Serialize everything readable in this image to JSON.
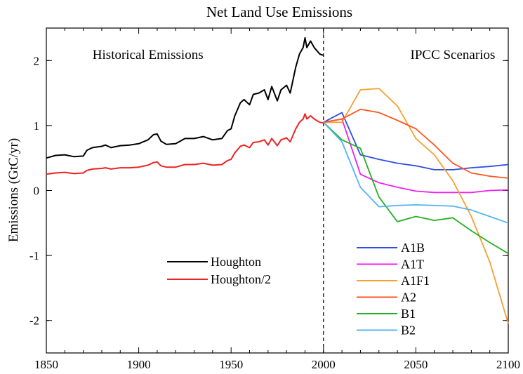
{
  "chart_data": {
    "type": "line",
    "title": "Net Land Use Emissions",
    "xlabel": "",
    "ylabel": "Emissions (GtC/yr)",
    "xlim": [
      1850,
      2100
    ],
    "ylim": [
      -2.5,
      2.5
    ],
    "xticks": [
      1850,
      1900,
      1950,
      2000,
      2050,
      2100
    ],
    "yticks": [
      -2,
      -1,
      0,
      1,
      2
    ],
    "grid": false,
    "annotations": [
      {
        "text": "Historical Emissions",
        "x": 1875
      },
      {
        "text": "IPCC Scenarios",
        "x": 2047
      }
    ],
    "divider": {
      "x": 2000,
      "style": "dashed"
    },
    "series": [
      {
        "name": "Houghton",
        "color": "#000000",
        "legend_group": "historical",
        "x": [
          1850,
          1855,
          1860,
          1865,
          1870,
          1872,
          1875,
          1880,
          1882,
          1885,
          1890,
          1895,
          1900,
          1905,
          1908,
          1910,
          1912,
          1915,
          1920,
          1925,
          1930,
          1935,
          1940,
          1945,
          1948,
          1950,
          1952,
          1955,
          1957,
          1960,
          1962,
          1965,
          1968,
          1970,
          1972,
          1975,
          1977,
          1980,
          1982,
          1985,
          1987,
          1989,
          1990,
          1991,
          1993,
          1995,
          1998,
          2000
        ],
        "y": [
          0.5,
          0.54,
          0.55,
          0.52,
          0.53,
          0.62,
          0.66,
          0.68,
          0.7,
          0.66,
          0.69,
          0.7,
          0.72,
          0.78,
          0.86,
          0.87,
          0.76,
          0.71,
          0.72,
          0.8,
          0.8,
          0.83,
          0.78,
          0.8,
          0.92,
          0.95,
          1.15,
          1.35,
          1.4,
          1.32,
          1.48,
          1.5,
          1.55,
          1.4,
          1.6,
          1.38,
          1.55,
          1.62,
          1.5,
          1.9,
          2.1,
          2.2,
          2.35,
          2.2,
          2.3,
          2.2,
          2.1,
          2.08
        ]
      },
      {
        "name": "Houghton/2",
        "color": "#ee2222",
        "legend_group": "historical",
        "x": [
          1850,
          1855,
          1860,
          1865,
          1870,
          1872,
          1875,
          1880,
          1882,
          1885,
          1890,
          1895,
          1900,
          1905,
          1908,
          1910,
          1912,
          1915,
          1920,
          1925,
          1930,
          1935,
          1940,
          1945,
          1948,
          1950,
          1952,
          1955,
          1957,
          1960,
          1962,
          1965,
          1968,
          1970,
          1972,
          1975,
          1977,
          1980,
          1982,
          1985,
          1987,
          1989,
          1990,
          1991,
          1993,
          1995,
          1998,
          2000
        ],
        "y": [
          0.25,
          0.27,
          0.28,
          0.26,
          0.27,
          0.31,
          0.33,
          0.34,
          0.35,
          0.33,
          0.35,
          0.35,
          0.36,
          0.39,
          0.43,
          0.44,
          0.38,
          0.36,
          0.36,
          0.4,
          0.4,
          0.42,
          0.39,
          0.4,
          0.46,
          0.48,
          0.58,
          0.68,
          0.7,
          0.66,
          0.74,
          0.75,
          0.78,
          0.7,
          0.8,
          0.69,
          0.78,
          0.81,
          0.75,
          0.95,
          1.05,
          1.1,
          1.18,
          1.1,
          1.15,
          1.1,
          1.05,
          1.04
        ]
      },
      {
        "name": "A1B",
        "color": "#2d4fe0",
        "legend_group": "scenario",
        "x": [
          2000,
          2010,
          2020,
          2030,
          2040,
          2050,
          2060,
          2070,
          2080,
          2090,
          2100
        ],
        "y": [
          1.05,
          1.2,
          0.55,
          0.48,
          0.42,
          0.38,
          0.32,
          0.32,
          0.35,
          0.37,
          0.4
        ]
      },
      {
        "name": "A1T",
        "color": "#f020f0",
        "legend_group": "scenario",
        "x": [
          2000,
          2010,
          2020,
          2030,
          2040,
          2050,
          2060,
          2070,
          2080,
          2090,
          2100
        ],
        "y": [
          1.05,
          1.1,
          0.25,
          0.12,
          0.05,
          -0.01,
          -0.03,
          -0.03,
          -0.03,
          0.0,
          0.01
        ]
      },
      {
        "name": "A1F1",
        "color": "#f5a030",
        "legend_group": "scenario",
        "x": [
          2000,
          2010,
          2020,
          2030,
          2040,
          2050,
          2060,
          2070,
          2080,
          2090,
          2100
        ],
        "y": [
          1.05,
          1.05,
          1.55,
          1.57,
          1.3,
          0.8,
          0.55,
          0.15,
          -0.4,
          -1.1,
          -2.05
        ]
      },
      {
        "name": "A2",
        "color": "#ff5522",
        "legend_group": "scenario",
        "x": [
          2000,
          2010,
          2020,
          2030,
          2040,
          2050,
          2060,
          2070,
          2080,
          2090,
          2100
        ],
        "y": [
          1.05,
          1.1,
          1.25,
          1.2,
          1.08,
          0.95,
          0.7,
          0.42,
          0.27,
          0.22,
          0.19
        ]
      },
      {
        "name": "B1",
        "color": "#22b022",
        "legend_group": "scenario",
        "x": [
          2000,
          2010,
          2020,
          2030,
          2040,
          2050,
          2060,
          2070,
          2080,
          2090,
          2100
        ],
        "y": [
          1.05,
          0.78,
          0.65,
          -0.1,
          -0.48,
          -0.4,
          -0.46,
          -0.42,
          -0.62,
          -0.8,
          -0.97
        ]
      },
      {
        "name": "B2",
        "color": "#55b4f0",
        "legend_group": "scenario",
        "x": [
          2000,
          2010,
          2020,
          2030,
          2040,
          2050,
          2060,
          2070,
          2080,
          2090,
          2100
        ],
        "y": [
          1.05,
          0.75,
          0.05,
          -0.25,
          -0.23,
          -0.22,
          -0.23,
          -0.24,
          -0.3,
          -0.4,
          -0.5
        ]
      }
    ]
  }
}
